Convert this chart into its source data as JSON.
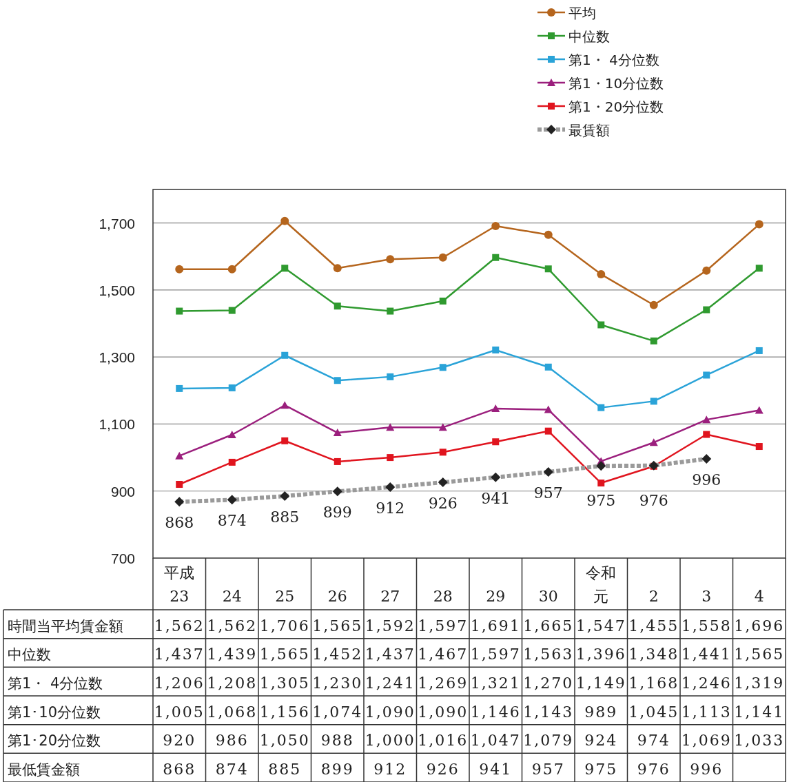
{
  "chart_data": {
    "type": "line",
    "categories": [
      "平成23",
      "24",
      "25",
      "26",
      "27",
      "28",
      "29",
      "30",
      "令和元",
      "2",
      "3",
      "4"
    ],
    "ylim": [
      700,
      1800
    ],
    "yticks": [
      {
        "value": 700,
        "label": "700"
      },
      {
        "value": 900,
        "label": "900"
      },
      {
        "value": 1100,
        "label": "1,100"
      },
      {
        "value": 1300,
        "label": "1,300"
      },
      {
        "value": 1500,
        "label": "1,500"
      },
      {
        "value": 1700,
        "label": "1,700"
      }
    ],
    "grid": "y",
    "legend": "top right",
    "data_labels": true,
    "annotations": [
      "時間当平均賃金額",
      "中位数",
      "第1・ 4分位数",
      "第1･10分位数",
      "第1･20分位数",
      "最低賃金額",
      {
        "text": "868",
        "x": "平成23",
        "y": 868
      },
      {
        "text": "874",
        "x": "24",
        "y": 874
      },
      {
        "text": "885",
        "x": "25",
        "y": 885
      },
      {
        "text": "899",
        "x": "26",
        "y": 899
      },
      {
        "text": "912",
        "x": "27",
        "y": 912
      },
      {
        "text": "926",
        "x": "28",
        "y": 926
      },
      {
        "text": "941",
        "x": "29",
        "y": 941
      },
      {
        "text": "957",
        "x": "30",
        "y": 957
      },
      {
        "text": "975",
        "x": "令和元",
        "y": 975
      },
      {
        "text": "976",
        "x": "2",
        "y": 976
      },
      {
        "text": "996",
        "x": "3",
        "y": 996
      }
    ],
    "series": [
      {
        "name": "平均",
        "color": "#b5651d",
        "marker": "circle",
        "values": [
          1562,
          1562,
          1706,
          1565,
          1592,
          1597,
          1691,
          1665,
          1547,
          1455,
          1558,
          1696
        ],
        "value_labels": [
          "1,562",
          "1,562",
          "1,706",
          "1,565",
          "1,592",
          "1,597",
          "1,691",
          "1,665",
          "1,547",
          "1,455",
          "1,558",
          "1,696"
        ]
      },
      {
        "name": "中位数",
        "color": "#2f9a2f",
        "marker": "square",
        "values": [
          1437,
          1439,
          1565,
          1452,
          1437,
          1467,
          1597,
          1563,
          1396,
          1348,
          1441,
          1565
        ],
        "value_labels": [
          "1,437",
          "1,439",
          "1,565",
          "1,452",
          "1,437",
          "1,467",
          "1,597",
          "1,563",
          "1,396",
          "1,348",
          "1,441",
          "1,565"
        ]
      },
      {
        "name": "第1・ 4分位数",
        "color": "#2aa3d8",
        "marker": "square",
        "values": [
          1206,
          1208,
          1305,
          1230,
          1241,
          1269,
          1321,
          1270,
          1149,
          1168,
          1246,
          1319
        ],
        "value_labels": [
          "1,206",
          "1,208",
          "1,305",
          "1,230",
          "1,241",
          "1,269",
          "1,321",
          "1,270",
          "1,149",
          "1,168",
          "1,246",
          "1,319"
        ]
      },
      {
        "name": "第1・10分位数",
        "color": "#9b1f7d",
        "marker": "triangle",
        "values": [
          1005,
          1068,
          1156,
          1074,
          1090,
          1090,
          1146,
          1143,
          989,
          1045,
          1113,
          1141
        ],
        "value_labels": [
          "1,005",
          "1,068",
          "1,156",
          "1,074",
          "1,090",
          "1,090",
          "1,146",
          "1,143",
          "989",
          "1,045",
          "1,113",
          "1,141"
        ]
      },
      {
        "name": "第1・20分位数",
        "color": "#e0141e",
        "marker": "square",
        "values": [
          920,
          986,
          1050,
          988,
          1000,
          1016,
          1047,
          1079,
          924,
          974,
          1069,
          1033
        ],
        "value_labels": [
          "920",
          "986",
          "1,050",
          "988",
          "1,000",
          "1,016",
          "1,047",
          "1,079",
          "924",
          "974",
          "1,069",
          "1,033"
        ]
      },
      {
        "name": "最賃額",
        "color": "#222222",
        "marker": "diamond",
        "line_style": "dashed",
        "values": [
          868,
          874,
          885,
          899,
          912,
          926,
          941,
          957,
          975,
          976,
          996,
          null
        ],
        "value_labels": [
          "868",
          "874",
          "885",
          "899",
          "912",
          "926",
          "941",
          "957",
          "975",
          "976",
          "996",
          null
        ]
      }
    ]
  }
}
